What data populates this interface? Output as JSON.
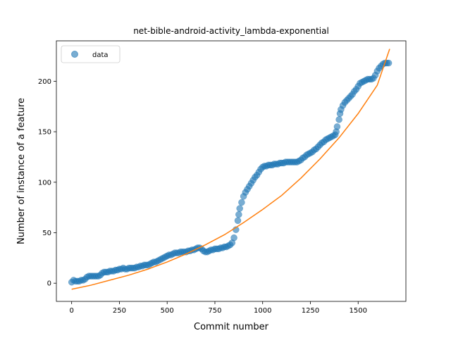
{
  "chart_data": {
    "type": "scatter",
    "title": "net-bible-android-activity_lambda-exponential",
    "xlabel": "Commit number",
    "ylabel": "Number of instance of a feature",
    "xlim": [
      -80,
      1750
    ],
    "ylim": [
      -18,
      240
    ],
    "xticks": [
      0,
      250,
      500,
      750,
      1000,
      1250,
      1500
    ],
    "yticks": [
      0,
      50,
      100,
      150,
      200
    ],
    "legend": {
      "placement": "top-left",
      "entries": [
        "data"
      ]
    },
    "grid": false,
    "series": [
      {
        "name": "data",
        "kind": "scatter",
        "color": "#1f77b4",
        "opacity": 0.6,
        "points": [
          [
            0,
            1
          ],
          [
            10,
            3
          ],
          [
            20,
            2
          ],
          [
            30,
            2
          ],
          [
            40,
            2
          ],
          [
            50,
            3
          ],
          [
            60,
            3
          ],
          [
            70,
            4
          ],
          [
            80,
            6
          ],
          [
            90,
            7
          ],
          [
            100,
            7
          ],
          [
            110,
            7
          ],
          [
            120,
            7
          ],
          [
            130,
            7
          ],
          [
            140,
            7
          ],
          [
            150,
            8
          ],
          [
            160,
            10
          ],
          [
            170,
            11
          ],
          [
            180,
            11
          ],
          [
            190,
            11
          ],
          [
            200,
            12
          ],
          [
            210,
            12
          ],
          [
            220,
            12
          ],
          [
            230,
            13
          ],
          [
            240,
            13
          ],
          [
            250,
            14
          ],
          [
            260,
            14
          ],
          [
            270,
            15
          ],
          [
            280,
            14
          ],
          [
            290,
            14
          ],
          [
            300,
            15
          ],
          [
            310,
            15
          ],
          [
            320,
            15
          ],
          [
            330,
            15
          ],
          [
            340,
            16
          ],
          [
            350,
            16
          ],
          [
            360,
            17
          ],
          [
            370,
            17
          ],
          [
            380,
            18
          ],
          [
            390,
            18
          ],
          [
            400,
            18
          ],
          [
            410,
            19
          ],
          [
            420,
            20
          ],
          [
            430,
            21
          ],
          [
            440,
            21
          ],
          [
            450,
            22
          ],
          [
            460,
            23
          ],
          [
            470,
            24
          ],
          [
            480,
            25
          ],
          [
            490,
            26
          ],
          [
            500,
            27
          ],
          [
            510,
            28
          ],
          [
            520,
            28
          ],
          [
            530,
            29
          ],
          [
            540,
            30
          ],
          [
            550,
            30
          ],
          [
            560,
            30
          ],
          [
            570,
            31
          ],
          [
            580,
            31
          ],
          [
            590,
            31
          ],
          [
            600,
            31
          ],
          [
            610,
            32
          ],
          [
            620,
            32
          ],
          [
            630,
            33
          ],
          [
            640,
            33
          ],
          [
            650,
            34
          ],
          [
            660,
            35
          ],
          [
            670,
            35
          ],
          [
            680,
            34
          ],
          [
            690,
            32
          ],
          [
            700,
            31
          ],
          [
            710,
            31
          ],
          [
            720,
            32
          ],
          [
            730,
            33
          ],
          [
            740,
            33
          ],
          [
            750,
            34
          ],
          [
            760,
            34
          ],
          [
            770,
            34
          ],
          [
            780,
            35
          ],
          [
            790,
            35
          ],
          [
            800,
            36
          ],
          [
            810,
            36
          ],
          [
            820,
            37
          ],
          [
            830,
            38
          ],
          [
            840,
            40
          ],
          [
            850,
            45
          ],
          [
            860,
            53
          ],
          [
            870,
            62
          ],
          [
            875,
            68
          ],
          [
            880,
            74
          ],
          [
            890,
            80
          ],
          [
            900,
            86
          ],
          [
            910,
            90
          ],
          [
            920,
            93
          ],
          [
            930,
            96
          ],
          [
            940,
            99
          ],
          [
            950,
            102
          ],
          [
            960,
            105
          ],
          [
            970,
            107
          ],
          [
            980,
            110
          ],
          [
            990,
            113
          ],
          [
            1000,
            115
          ],
          [
            1010,
            116
          ],
          [
            1020,
            116
          ],
          [
            1030,
            117
          ],
          [
            1040,
            117
          ],
          [
            1050,
            117
          ],
          [
            1060,
            118
          ],
          [
            1070,
            118
          ],
          [
            1080,
            118
          ],
          [
            1090,
            119
          ],
          [
            1100,
            119
          ],
          [
            1110,
            119
          ],
          [
            1120,
            120
          ],
          [
            1130,
            120
          ],
          [
            1140,
            120
          ],
          [
            1150,
            120
          ],
          [
            1160,
            120
          ],
          [
            1170,
            120
          ],
          [
            1180,
            120
          ],
          [
            1190,
            121
          ],
          [
            1200,
            122
          ],
          [
            1210,
            124
          ],
          [
            1220,
            125
          ],
          [
            1230,
            127
          ],
          [
            1240,
            128
          ],
          [
            1250,
            129
          ],
          [
            1260,
            130
          ],
          [
            1270,
            132
          ],
          [
            1280,
            133
          ],
          [
            1290,
            135
          ],
          [
            1300,
            137
          ],
          [
            1310,
            139
          ],
          [
            1320,
            140
          ],
          [
            1330,
            142
          ],
          [
            1340,
            143
          ],
          [
            1350,
            144
          ],
          [
            1360,
            145
          ],
          [
            1370,
            146
          ],
          [
            1380,
            147
          ],
          [
            1385,
            150
          ],
          [
            1390,
            155
          ],
          [
            1400,
            162
          ],
          [
            1405,
            168
          ],
          [
            1410,
            172
          ],
          [
            1420,
            176
          ],
          [
            1430,
            179
          ],
          [
            1440,
            181
          ],
          [
            1450,
            183
          ],
          [
            1460,
            185
          ],
          [
            1470,
            187
          ],
          [
            1480,
            190
          ],
          [
            1490,
            192
          ],
          [
            1500,
            195
          ],
          [
            1510,
            198
          ],
          [
            1520,
            199
          ],
          [
            1530,
            200
          ],
          [
            1540,
            201
          ],
          [
            1550,
            202
          ],
          [
            1560,
            202
          ],
          [
            1570,
            202
          ],
          [
            1580,
            203
          ],
          [
            1590,
            206
          ],
          [
            1600,
            210
          ],
          [
            1610,
            213
          ],
          [
            1620,
            215
          ],
          [
            1630,
            217
          ],
          [
            1640,
            218
          ],
          [
            1650,
            218
          ],
          [
            1660,
            218
          ]
        ]
      },
      {
        "kind": "line",
        "color": "#ff7f0e",
        "model": "exponential",
        "x": [
          0,
          100,
          200,
          300,
          400,
          500,
          600,
          700,
          800,
          900,
          1000,
          1100,
          1200,
          1300,
          1400,
          1500,
          1600,
          1665
        ],
        "y": [
          -6,
          -2,
          3,
          8,
          14,
          21,
          29,
          38,
          48,
          60,
          73,
          87,
          104,
          123,
          144,
          168,
          196,
          232
        ]
      }
    ]
  }
}
